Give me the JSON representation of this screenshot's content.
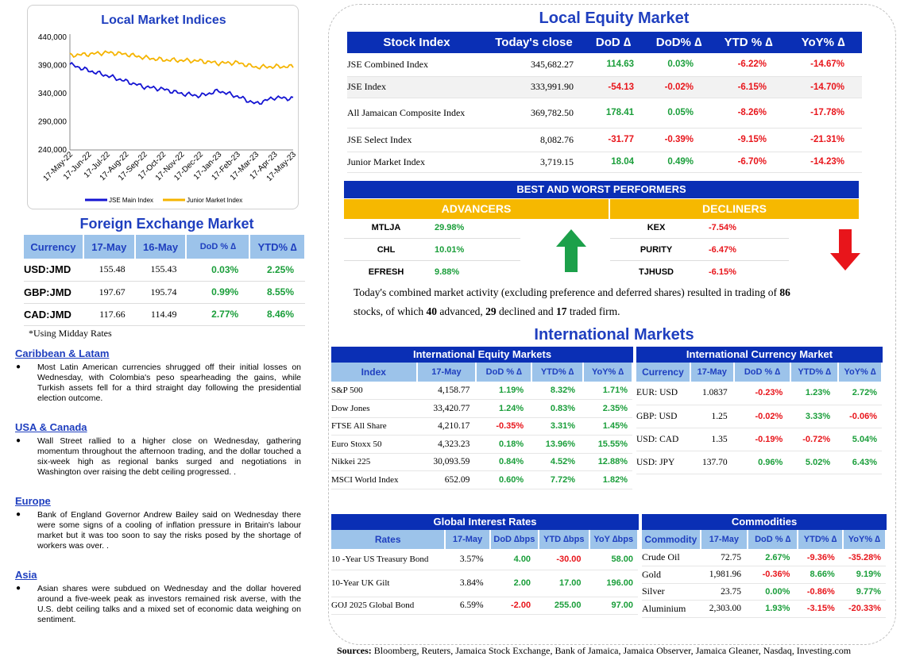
{
  "chart_data": {
    "type": "line",
    "title": "Local Market Indices",
    "x": [
      "17-May-22",
      "17-Jun-22",
      "17-Jul-22",
      "17-Aug-22",
      "17-Sep-22",
      "17-Oct-22",
      "17-Nov-22",
      "17-Dec-22",
      "17-Jan-23",
      "17-Feb-23",
      "17-Mar-23",
      "17-Apr-23",
      "17-May-23"
    ],
    "yticks": [
      "440,000",
      "390,000",
      "340,000",
      "290,000",
      "240,000"
    ],
    "ylim": [
      240000,
      440000
    ],
    "series": [
      {
        "name": "JSE Main Index",
        "color": "#1414d2",
        "values": [
          392000,
          381000,
          372000,
          362000,
          352000,
          348000,
          340000,
          336000,
          345000,
          335000,
          322000,
          333000,
          331000
        ]
      },
      {
        "name": "Junior Market Index",
        "color": "#f5b400",
        "values": [
          408000,
          410000,
          413000,
          410000,
          404000,
          400000,
          399000,
          398000,
          394000,
          395000,
          387000,
          388000,
          388000
        ]
      }
    ],
    "legend": "bottom"
  },
  "fx": {
    "title": "Foreign Exchange Market",
    "headers": [
      "Currency",
      "17-May",
      "16-May",
      "DoD % ∆",
      "YTD% ∆"
    ],
    "rows": [
      {
        "c": "USD:JMD",
        "a": "155.48",
        "b": "155.43",
        "d": "0.03%",
        "y": "2.25%"
      },
      {
        "c": "GBP:JMD",
        "a": "197.67",
        "b": "195.74",
        "d": "0.99%",
        "y": "8.55%"
      },
      {
        "c": "CAD:JMD",
        "a": "117.66",
        "b": "114.49",
        "d": "2.77%",
        "y": "8.46%"
      }
    ],
    "note": "*Using Midday Rates"
  },
  "news": [
    {
      "head": "Caribbean & Latam",
      "text": "Most Latin American currencies shrugged off their initial losses on Wednesday, with Colombia's peso spearheading the gains, while Turkish assets fell for a third straight day following the presidential election outcome."
    },
    {
      "head": "USA & Canada",
      "text": "Wall Street rallied to a higher close on Wednesday, gathering momentum throughout the afternoon trading, and the dollar touched a six-week high as regional banks surged and negotiations in Washington over raising the debt ceiling progressed. ."
    },
    {
      "head": "Europe",
      "text": "Bank of England Governor Andrew Bailey said on Wednesday there were some signs of a cooling of inflation pressure in Britain's labour market but it was too soon to say the risks posed by the shortage of workers was over. ."
    },
    {
      "head": "Asia",
      "text": "Asian shares were subdued on Wednesday and the dollar hovered around a five-week peak as investors remained risk averse, with the U.S. debt ceiling talks and a mixed set of economic data weighing on sentiment."
    }
  ],
  "equity": {
    "title": "Local Equity Market",
    "headers": [
      "Stock Index",
      "Today's close",
      "DoD  ∆",
      "DoD% ∆",
      "YTD % ∆",
      "YoY% ∆"
    ],
    "rows": [
      {
        "n": "JSE Combined Index",
        "c": "345,682.27",
        "d": "114.63",
        "dp": "0.03%",
        "y": "-6.22%",
        "yy": "-14.67%"
      },
      {
        "n": "JSE Index",
        "c": "333,991.90",
        "d": "-54.13",
        "dp": "-0.02%",
        "y": "-6.15%",
        "yy": "-14.70%"
      },
      {
        "n": "All Jamaican Composite Index",
        "c": "369,782.50",
        "d": "178.41",
        "dp": "0.05%",
        "y": "-8.26%",
        "yy": "-17.78%"
      },
      {
        "n": "JSE Select Index",
        "c": "8,082.76",
        "d": "-31.77",
        "dp": "-0.39%",
        "y": "-9.15%",
        "yy": "-21.31%"
      },
      {
        "n": "Junior Market Index",
        "c": "3,719.15",
        "d": "18.04",
        "dp": "0.49%",
        "y": "-6.70%",
        "yy": "-14.23%"
      }
    ]
  },
  "performers": {
    "title": "BEST AND WORST PERFORMERS",
    "adv_label": "ADVANCERS",
    "dec_label": "DECLINERS",
    "advancers": [
      {
        "s": "MTLJA",
        "v": "29.98%"
      },
      {
        "s": "CHL",
        "v": "10.01%"
      },
      {
        "s": "EFRESH",
        "v": "9.88%"
      }
    ],
    "decliners": [
      {
        "s": "KEX",
        "v": "-7.54%"
      },
      {
        "s": "PURITY",
        "v": "-6.47%"
      },
      {
        "s": "TJHUSD",
        "v": "-6.15%"
      }
    ]
  },
  "summary": {
    "p1": "Today's combined market activity (excluding preference and deferred shares) resulted in trading of ",
    "n1": "86",
    "p2": "stocks, of which ",
    "n2": "40",
    "p3": " advanced, ",
    "n3": "29",
    "p4": " declined and ",
    "n4": "17",
    "p5": " traded firm."
  },
  "intl_title": "International Markets",
  "ieq": {
    "title": "International Equity Markets",
    "headers": [
      "Index",
      "17-May",
      "DoD % ∆",
      "YTD% ∆",
      "YoY% ∆"
    ],
    "rows": [
      {
        "n": "S&P 500",
        "a": "4,158.77",
        "d": "1.19%",
        "y": "8.32%",
        "yy": "1.71%"
      },
      {
        "n": "Dow Jones",
        "a": "33,420.77",
        "d": "1.24%",
        "y": "0.83%",
        "yy": "2.35%"
      },
      {
        "n": "FTSE All Share",
        "a": "4,210.17",
        "d": "-0.35%",
        "y": "3.31%",
        "yy": "1.45%"
      },
      {
        "n": "Euro Stoxx 50",
        "a": "4,323.23",
        "d": "0.18%",
        "y": "13.96%",
        "yy": "15.55%"
      },
      {
        "n": "Nikkei 225",
        "a": "30,093.59",
        "d": "0.84%",
        "y": "4.52%",
        "yy": "12.88%"
      },
      {
        "n": "MSCI World Index",
        "a": "652.09",
        "d": "0.60%",
        "y": "7.72%",
        "yy": "1.82%"
      }
    ]
  },
  "icur": {
    "title": "International Currency Market",
    "headers": [
      "Currency",
      "17-May",
      "DoD % ∆",
      "YTD% ∆",
      "YoY% ∆"
    ],
    "rows": [
      {
        "n": "EUR: USD",
        "a": "1.0837",
        "d": "-0.23%",
        "y": "1.23%",
        "yy": "2.72%"
      },
      {
        "n": "GBP: USD",
        "a": "1.25",
        "d": "-0.02%",
        "y": "3.33%",
        "yy": "-0.06%"
      },
      {
        "n": "USD: CAD",
        "a": "1.35",
        "d": "-0.19%",
        "y": "-0.72%",
        "yy": "5.04%"
      },
      {
        "n": "USD: JPY",
        "a": "137.70",
        "d": "0.96%",
        "y": "5.02%",
        "yy": "6.43%"
      }
    ]
  },
  "rates": {
    "title": "Global Interest Rates",
    "headers": [
      "Rates",
      "17-May",
      "DoD ∆bps",
      "YTD ∆bps",
      "YoY ∆bps"
    ],
    "rows": [
      {
        "n": "10 -Year US Treasury Bond",
        "a": "3.57%",
        "d": "4.00",
        "y": "-30.00",
        "yy": "58.00"
      },
      {
        "n": "10-Year UK Gilt",
        "a": "3.84%",
        "d": "2.00",
        "y": "17.00",
        "yy": "196.00"
      },
      {
        "n": "GOJ 2025 Global Bond",
        "a": "6.59%",
        "d": "-2.00",
        "y": "255.00",
        "yy": "97.00"
      }
    ]
  },
  "comm": {
    "title": "Commodities",
    "headers": [
      "Commodity",
      "17-May",
      "DoD % ∆",
      "YTD% ∆",
      "YoY% ∆"
    ],
    "rows": [
      {
        "n": "Crude Oil",
        "a": "72.75",
        "d": "2.67%",
        "y": "-9.36%",
        "yy": "-35.28%"
      },
      {
        "n": "Gold",
        "a": "1,981.96",
        "d": "-0.36%",
        "y": "8.66%",
        "yy": "9.19%"
      },
      {
        "n": "Silver",
        "a": "23.75",
        "d": "0.00%",
        "y": "-0.86%",
        "yy": "9.77%"
      },
      {
        "n": "Aluminium",
        "a": "2,303.00",
        "d": "1.93%",
        "y": "-3.15%",
        "yy": "-20.33%"
      }
    ]
  },
  "sources_label": "Sources:",
  "sources": " Bloomberg, Reuters, Jamaica Stock Exchange, Bank of Jamaica, Jamaica Observer, Jamaica Gleaner, Nasdaq, Investing.com"
}
